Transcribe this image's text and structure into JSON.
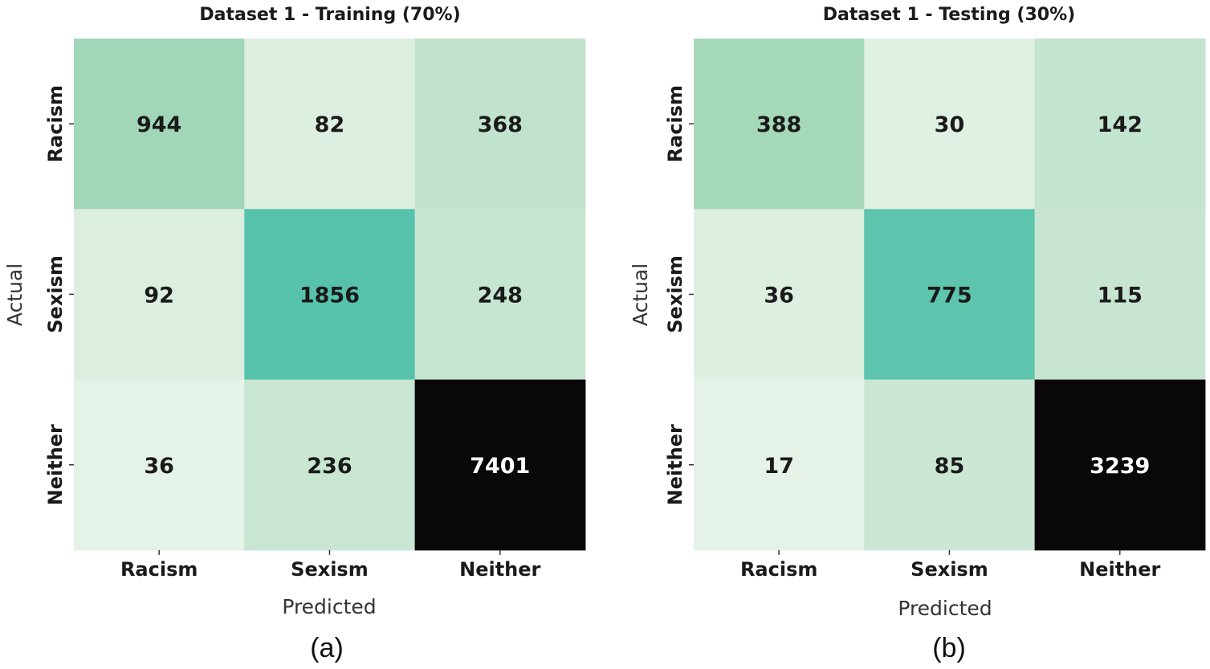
{
  "chart_data": [
    {
      "type": "heatmap",
      "title": "Dataset 1 - Training (70%)",
      "xlabel": "Predicted",
      "ylabel": "Actual",
      "x_categories": [
        "Racism",
        "Sexism",
        "Neither"
      ],
      "y_categories": [
        "Racism",
        "Sexism",
        "Neither"
      ],
      "values": [
        [
          944,
          82,
          368
        ],
        [
          92,
          1856,
          248
        ],
        [
          36,
          236,
          7401
        ]
      ],
      "caption": "(a)"
    },
    {
      "type": "heatmap",
      "title": "Dataset 1 - Testing (30%)",
      "xlabel": "Predicted",
      "ylabel": "Actual",
      "x_categories": [
        "Racism",
        "Sexism",
        "Neither"
      ],
      "y_categories": [
        "Racism",
        "Sexism",
        "Neither"
      ],
      "values": [
        [
          388,
          30,
          142
        ],
        [
          36,
          775,
          115
        ],
        [
          17,
          85,
          3239
        ]
      ],
      "caption": "(b)"
    }
  ],
  "colors": {
    "scale": [
      "#e5f2e7",
      "#cbe7d4",
      "#a3d7b8",
      "#54c2ac",
      "#2a8f82",
      "#0a0708"
    ],
    "text_dark": "#1a1a1a",
    "text_light": "#ffffff"
  }
}
